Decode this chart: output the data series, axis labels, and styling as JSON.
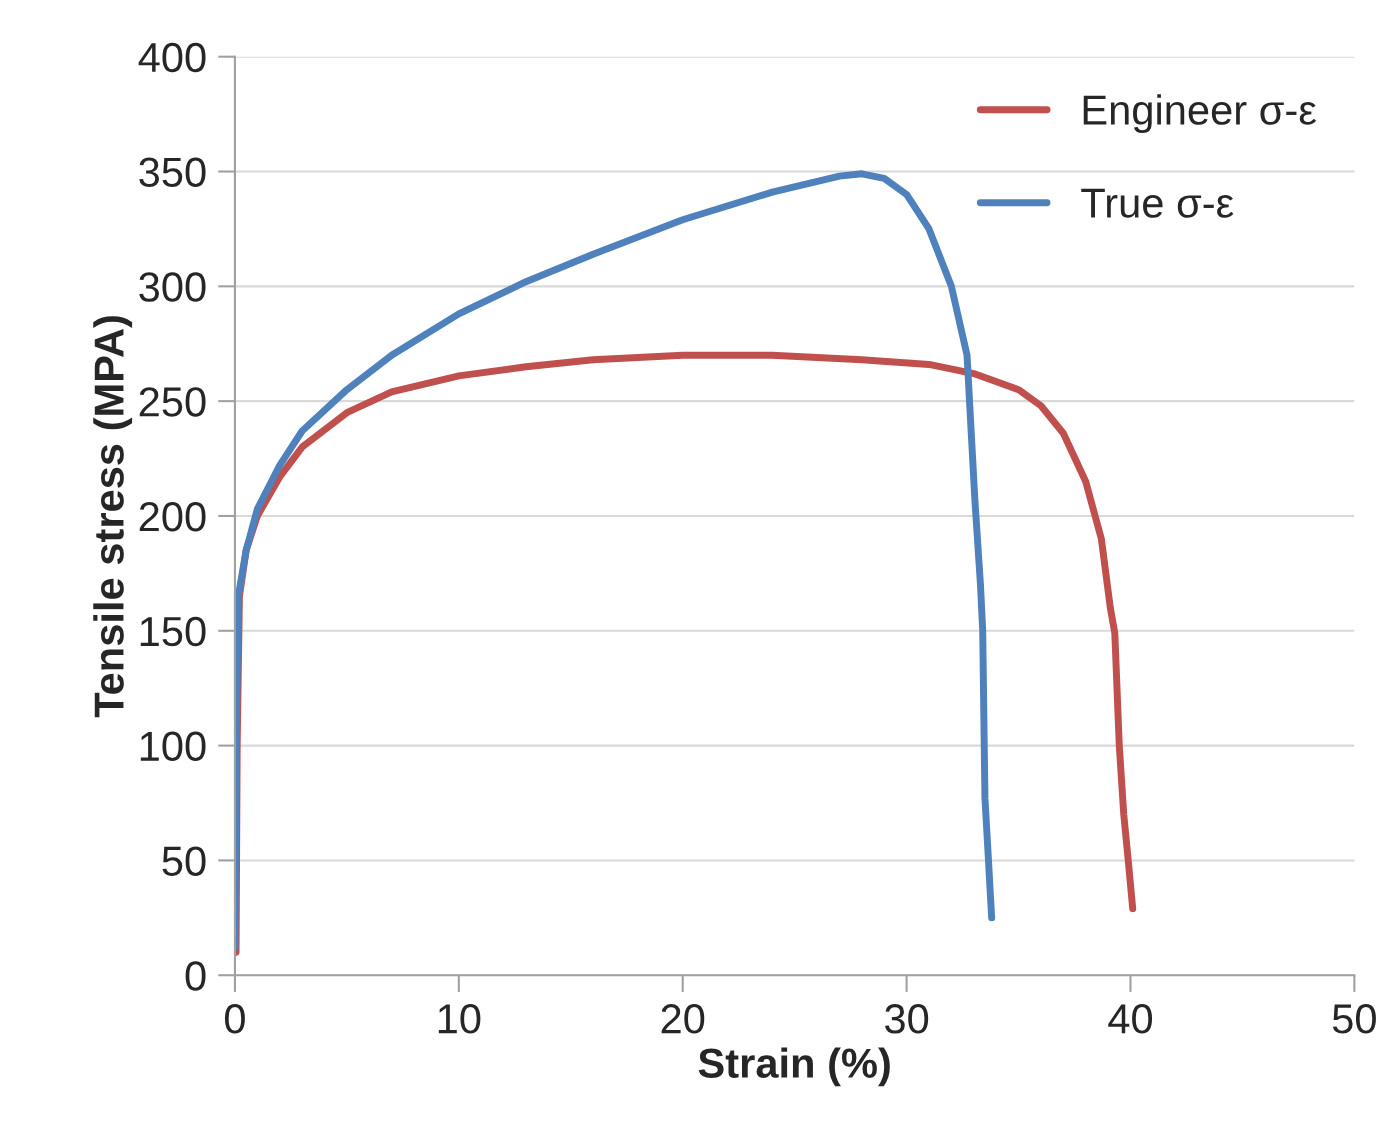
{
  "chart_data": {
    "type": "line",
    "xlabel": "Strain (%)",
    "ylabel": "Tensile stress (MPA)",
    "xlim": [
      0,
      50
    ],
    "xticks": [
      0,
      10,
      20,
      30,
      40,
      50
    ],
    "ylim": [
      0,
      400
    ],
    "yticks": [
      0,
      50,
      100,
      150,
      200,
      250,
      300,
      350,
      400
    ],
    "grid": "y",
    "legend": "top right",
    "marker": "none",
    "line_style": "solid",
    "series": [
      {
        "name": "Engineer σ-ε",
        "color": "#c0504d",
        "x": [
          0.05,
          0.1,
          0.2,
          0.5,
          1,
          2,
          3,
          5,
          7,
          10,
          13,
          16,
          20,
          24,
          28,
          31,
          33,
          35,
          36,
          37,
          38,
          38.7,
          39.1,
          39.3,
          39.5,
          39.7,
          39.9,
          40.1
        ],
        "values": [
          10,
          100,
          165,
          185,
          200,
          217,
          230,
          245,
          254,
          261,
          265,
          268,
          270,
          270,
          268,
          266,
          262,
          255,
          248,
          236,
          215,
          190,
          160,
          149,
          100,
          70,
          50,
          29
        ]
      },
      {
        "name": "True σ-ε",
        "color": "#4f81bd",
        "x": [
          0,
          0.05,
          0.15,
          0.5,
          1,
          2,
          3,
          5,
          7,
          10,
          13,
          16,
          20,
          24,
          27,
          28,
          29,
          30,
          31,
          32,
          32.7,
          33.05,
          33.3,
          33.4,
          33.5,
          33.6,
          33.8
        ],
        "values": [
          12,
          100,
          165,
          185,
          203,
          222,
          237,
          255,
          270,
          288,
          302,
          314,
          329,
          341,
          348,
          349,
          347,
          340,
          325,
          300,
          270,
          207,
          170,
          150,
          77,
          60,
          25
        ]
      }
    ]
  }
}
